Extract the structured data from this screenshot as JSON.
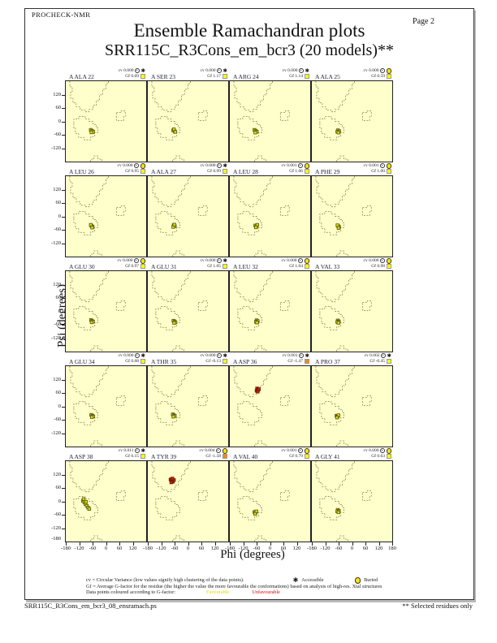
{
  "page": {
    "app": "PROCHECK-NMR",
    "page_label": "Page  2",
    "title_line1": "Ensemble Ramachandran plots",
    "title_line2": "SRR115C_R3Cons_em_bcr3 (20 models)**",
    "footer_file": "SRR115C_R3Cons_em_bcr3_08_ensramach.ps",
    "footer_note": "** Selected residues only"
  },
  "axes": {
    "x_label": "Phi (degrees)",
    "y_label": "Psi (degrees)",
    "x_tick_labels": [
      "-180",
      "-120",
      "-60",
      "0",
      "60",
      "120"
    ],
    "x_last_tick_label": "180",
    "y_tick_labels": [
      "120",
      "60",
      "0",
      "-60",
      "-120"
    ],
    "y_bottom_label": "-180"
  },
  "labels": {
    "cv_prefix": "cv",
    "gf_prefix": "Gf"
  },
  "colors": {
    "plot_bg": "#ffffcc",
    "favourable_point": "#d8d800",
    "favourable_point_stroke": "#55551a",
    "unfavourable_point": "#bb2a00",
    "unfavourable_point_stroke": "#6e1500",
    "gf_square_favourable": "#ffff00",
    "gf_square_unfavourable": "#ff8800",
    "buried_icon": "#ffe400",
    "favourable_text": "#e8d800",
    "unfavourable_text": "#dd0000"
  },
  "legend": {
    "line1_text": "cv = Circular Variance (low values signify high clustering of the data points).",
    "accessible_label": "Accessible",
    "buried_label": "Buried",
    "line2_text": "Gf = Average G-factor for the residue (the higher the value the more favourable the conformations)  based on analysis of high-res. Xtal structures",
    "line3_text": "Data points coloured according to G-factor:",
    "favourable_label": "Favourable",
    "unfavourable_label": "Unfavourable"
  },
  "chart_data": {
    "type": "scatter",
    "grid": {
      "rows": 5,
      "cols": 4
    },
    "xlim": [
      -180,
      180
    ],
    "ylim": [
      -180,
      180
    ],
    "subplots": [
      {
        "residue": "A ALA 22",
        "cv": "0.000",
        "gf": "0.69",
        "accessibility": "accessible",
        "gf_class": "favourable",
        "points": [
          [
            -68,
            -38,
            "f"
          ],
          [
            -62,
            -43,
            "f"
          ],
          [
            -57,
            -47,
            "f"
          ],
          [
            -65,
            -49,
            "f"
          ]
        ]
      },
      {
        "residue": "A SER 23",
        "cv": "0.000",
        "gf": "1.17",
        "accessibility": "accessible",
        "gf_class": "favourable",
        "points": [
          [
            -66,
            -40,
            "f"
          ],
          [
            -60,
            -44,
            "f"
          ],
          [
            -63,
            -36,
            "f"
          ],
          [
            -57,
            -47,
            "f"
          ]
        ]
      },
      {
        "residue": "A ARG 24",
        "cv": "0.000",
        "gf": "1.14",
        "accessibility": "accessible",
        "gf_class": "favourable",
        "points": [
          [
            -70,
            -38,
            "f"
          ],
          [
            -64,
            -42,
            "f"
          ],
          [
            -59,
            -46,
            "f"
          ],
          [
            -66,
            -50,
            "f"
          ]
        ]
      },
      {
        "residue": "A ALA 25",
        "cv": "0.000",
        "gf": "0.59",
        "accessibility": "buried",
        "gf_class": "favourable",
        "points": [
          [
            -63,
            -40,
            "f"
          ],
          [
            -58,
            -44,
            "f"
          ],
          [
            -66,
            -46,
            "f"
          ],
          [
            -61,
            -50,
            "f"
          ]
        ]
      },
      {
        "residue": "A LEU 26",
        "cv": "0.000",
        "gf": "0.95",
        "accessibility": "buried",
        "gf_class": "favourable",
        "points": [
          [
            -65,
            -42,
            "f"
          ],
          [
            -60,
            -46,
            "f"
          ],
          [
            -68,
            -38,
            "f"
          ],
          [
            -62,
            -50,
            "f"
          ]
        ]
      },
      {
        "residue": "A ALA 27",
        "cv": "0.000",
        "gf": "0.99",
        "accessibility": "accessible",
        "gf_class": "favourable",
        "points": [
          [
            -64,
            -40,
            "f"
          ],
          [
            -59,
            -44,
            "f"
          ],
          [
            -66,
            -47,
            "f"
          ],
          [
            -61,
            -37,
            "f"
          ]
        ]
      },
      {
        "residue": "A LEU 28",
        "cv": "0.001",
        "gf": "1.06",
        "accessibility": "buried",
        "gf_class": "favourable",
        "points": [
          [
            -66,
            -41,
            "f"
          ],
          [
            -61,
            -45,
            "f"
          ],
          [
            -57,
            -38,
            "f"
          ],
          [
            -63,
            -49,
            "f"
          ]
        ]
      },
      {
        "residue": "A PHE 29",
        "cv": "0.001",
        "gf": "1.00",
        "accessibility": "buried",
        "gf_class": "favourable",
        "points": [
          [
            -62,
            -44,
            "f"
          ],
          [
            -58,
            -48,
            "f"
          ],
          [
            -65,
            -40,
            "f"
          ],
          [
            -60,
            -52,
            "f"
          ]
        ]
      },
      {
        "residue": "A GLU 30",
        "cv": "0.000",
        "gf": "0.97",
        "accessibility": "buried",
        "gf_class": "favourable",
        "points": [
          [
            -67,
            -39,
            "f"
          ],
          [
            -62,
            -43,
            "f"
          ],
          [
            -58,
            -46,
            "f"
          ],
          [
            -64,
            -49,
            "f"
          ]
        ]
      },
      {
        "residue": "A GLU 31",
        "cv": "0.000",
        "gf": "1.05",
        "accessibility": "accessible",
        "gf_class": "favourable",
        "points": [
          [
            -65,
            -42,
            "f"
          ],
          [
            -60,
            -45,
            "f"
          ],
          [
            -56,
            -49,
            "f"
          ],
          [
            -62,
            -52,
            "f"
          ]
        ]
      },
      {
        "residue": "A LEU 32",
        "cv": "0.000",
        "gf": "1.04",
        "accessibility": "buried",
        "gf_class": "favourable",
        "points": [
          [
            -60,
            -40,
            "f"
          ],
          [
            -55,
            -44,
            "f"
          ],
          [
            -63,
            -47,
            "f"
          ],
          [
            -58,
            -50,
            "f"
          ]
        ]
      },
      {
        "residue": "A VAL 33",
        "cv": "0.000",
        "gf": "0.98",
        "accessibility": "buried",
        "gf_class": "favourable",
        "points": [
          [
            -64,
            -41,
            "f"
          ],
          [
            -59,
            -45,
            "f"
          ],
          [
            -66,
            -48,
            "f"
          ],
          [
            -61,
            -51,
            "f"
          ]
        ]
      },
      {
        "residue": "A GLU 34",
        "cv": "0.000",
        "gf": "0.68",
        "accessibility": "accessible",
        "gf_class": "favourable",
        "points": [
          [
            -66,
            -38,
            "f"
          ],
          [
            -61,
            -42,
            "f"
          ],
          [
            -57,
            -45,
            "f"
          ],
          [
            -63,
            -48,
            "f"
          ]
        ]
      },
      {
        "residue": "A THR 35",
        "cv": "0.000",
        "gf": "-0.13",
        "accessibility": "accessible",
        "gf_class": "favourable",
        "points": [
          [
            -68,
            -36,
            "f"
          ],
          [
            -63,
            -40,
            "f"
          ],
          [
            -59,
            -43,
            "f"
          ],
          [
            -65,
            -46,
            "f"
          ]
        ]
      },
      {
        "residue": "A ASP 36",
        "cv": "0.001",
        "gf": "-1.47",
        "accessibility": "accessible",
        "gf_class": "unfavourable",
        "points": [
          [
            -58,
            80,
            "u"
          ],
          [
            -53,
            74,
            "u"
          ],
          [
            -60,
            70,
            "u"
          ],
          [
            -55,
            66,
            "u"
          ],
          [
            -50,
            77,
            "u"
          ]
        ]
      },
      {
        "residue": "A PRO 37",
        "cv": "0.002",
        "gf": "-0.45",
        "accessibility": "accessible",
        "gf_class": "favourable",
        "points": [
          [
            -70,
            -42,
            "f"
          ],
          [
            -65,
            -46,
            "u"
          ],
          [
            -61,
            -40,
            "f"
          ],
          [
            -67,
            -50,
            "f"
          ]
        ]
      },
      {
        "residue": "A ASP 38",
        "cv": "0.011",
        "gf": "0.15",
        "accessibility": "accessible",
        "gf_class": "favourable",
        "points": [
          [
            -103,
            2,
            "f"
          ],
          [
            -97,
            -4,
            "f"
          ],
          [
            -92,
            -12,
            "f"
          ],
          [
            -86,
            -20,
            "f"
          ],
          [
            -80,
            -28,
            "f"
          ],
          [
            -100,
            10,
            "f"
          ],
          [
            -90,
            -2,
            "f"
          ],
          [
            -75,
            -34,
            "f"
          ]
        ]
      },
      {
        "residue": "A TYR 39",
        "cv": "0.004",
        "gf": "-1.58",
        "accessibility": "buried",
        "gf_class": "unfavourable",
        "points": [
          [
            -78,
            98,
            "u"
          ],
          [
            -72,
            92,
            "u"
          ],
          [
            -68,
            88,
            "u"
          ],
          [
            -75,
            85,
            "u"
          ],
          [
            -63,
            95,
            "u"
          ],
          [
            -70,
            102,
            "u"
          ]
        ]
      },
      {
        "residue": "A VAL 40",
        "cv": "0.001",
        "gf": "0.79",
        "accessibility": "buried",
        "gf_class": "favourable",
        "points": [
          [
            -70,
            -48,
            "f"
          ],
          [
            -65,
            -52,
            "f"
          ],
          [
            -61,
            -45,
            "f"
          ],
          [
            -67,
            -56,
            "f"
          ]
        ]
      },
      {
        "residue": "A GLY 41",
        "cv": "0.000",
        "gf": "0.63",
        "accessibility": "buried",
        "gf_class": "favourable",
        "points": [
          [
            -64,
            -38,
            "f"
          ],
          [
            -59,
            -42,
            "f"
          ],
          [
            -66,
            -45,
            "f"
          ],
          [
            -61,
            -49,
            "f"
          ]
        ]
      }
    ]
  }
}
